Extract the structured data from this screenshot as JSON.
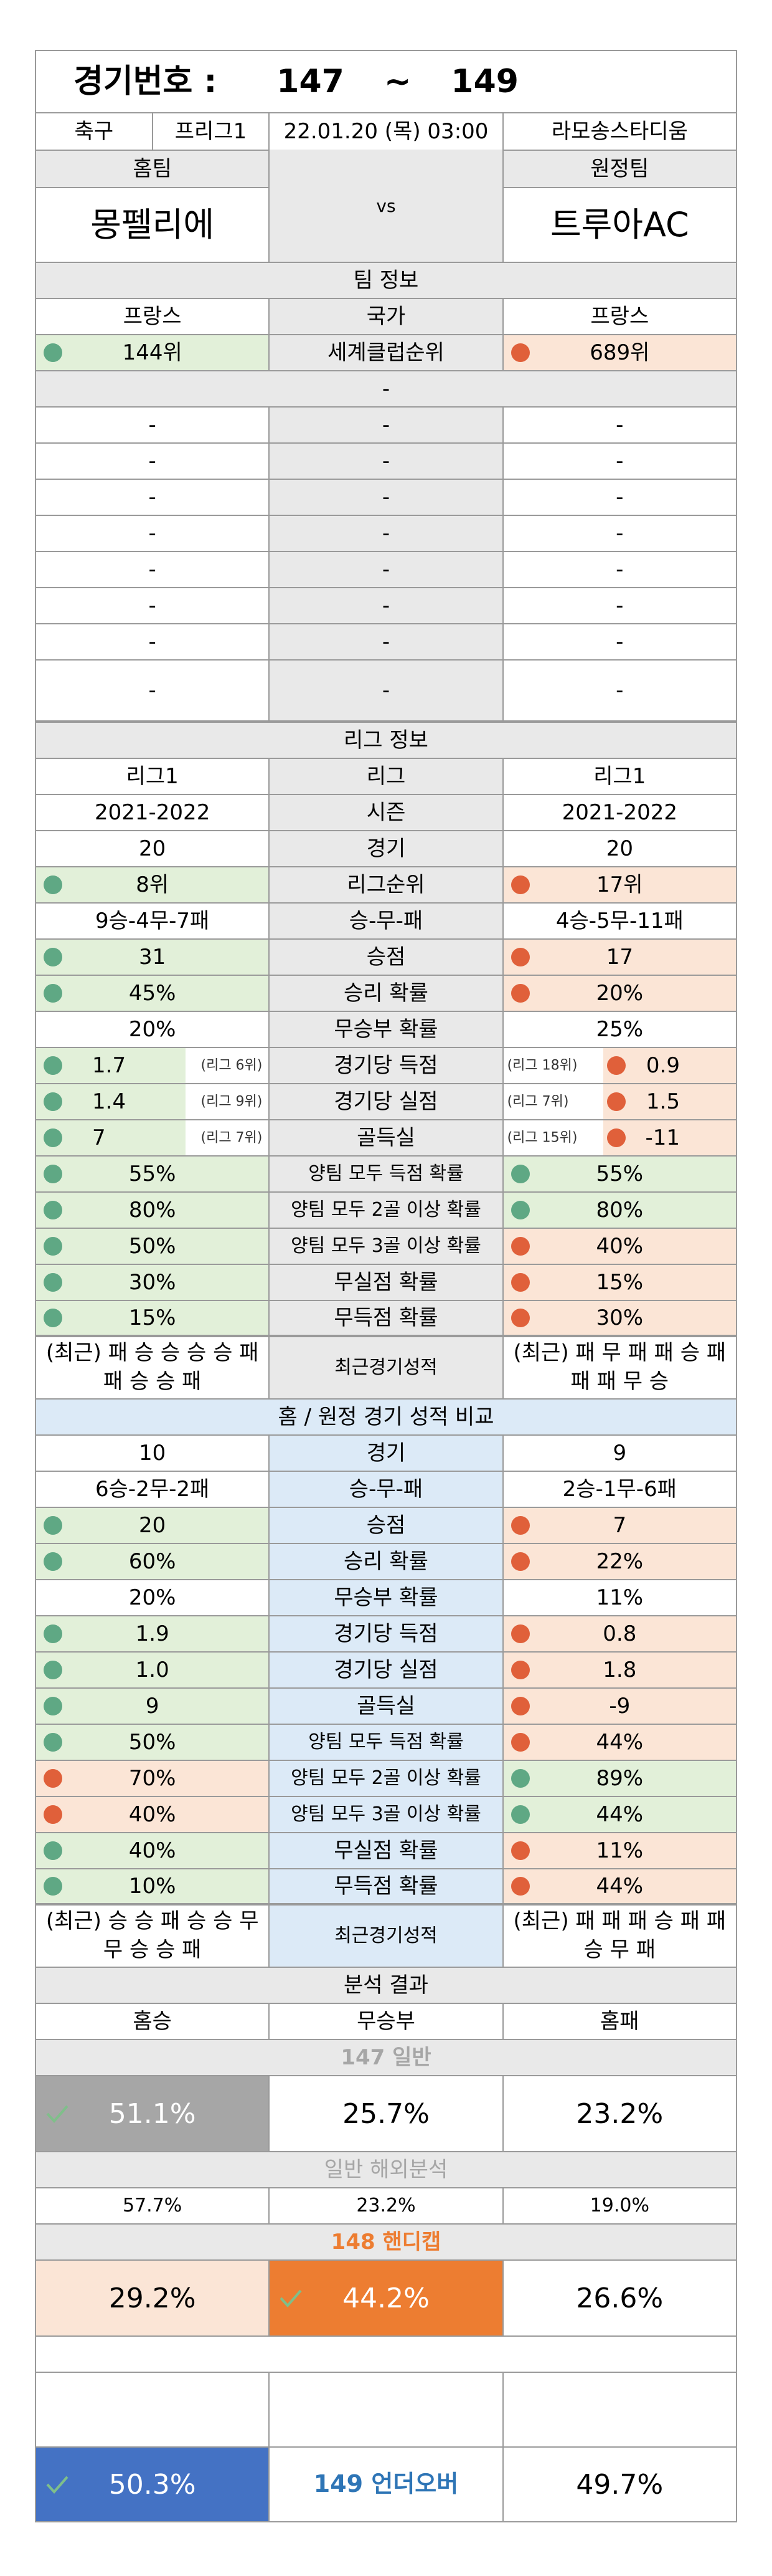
{
  "header": {
    "label": "경기번호 :",
    "from": "147",
    "tilde": "~",
    "to": "149"
  },
  "match": {
    "sport": "축구",
    "league": "프리그1",
    "datetime": "22.01.20 (목) 03:00",
    "stadium": "라모송스타디움"
  },
  "teams": {
    "home_label": "홈팀",
    "away_label": "원정팀",
    "home": "몽펠리에",
    "vs": "vs",
    "away": "트루아AC"
  },
  "team_info": {
    "title": "팀 정보",
    "country_home": "프랑스",
    "country_label": "국가",
    "country_away": "프랑스",
    "rank_home": "144위",
    "rank_label": "세계클럽순위",
    "rank_away": "689위",
    "dash_full": "-",
    "dash_rows": [
      "-",
      "-",
      "-",
      "-",
      "-",
      "-",
      "-",
      "-"
    ]
  },
  "league_info": {
    "title": "리그 정보",
    "rows": [
      {
        "home": "리그1",
        "label": "리그",
        "away": "리그1"
      },
      {
        "home": "2021-2022",
        "label": "시즌",
        "away": "2021-2022"
      },
      {
        "home": "20",
        "label": "경기",
        "away": "20"
      },
      {
        "home": "8위",
        "label": "리그순위",
        "away": "17위"
      },
      {
        "home": "9승-4무-7패",
        "label": "승-무-패",
        "away": "4승-5무-11패"
      },
      {
        "home": "31",
        "label": "승점",
        "away": "17"
      },
      {
        "home": "45%",
        "label": "승리 확률",
        "away": "20%"
      },
      {
        "home": "20%",
        "label": "무승부 확률",
        "away": "25%"
      },
      {
        "home": "1.7",
        "home_hint": "(리그 6위)",
        "label": "경기당 득점",
        "away": "0.9",
        "away_hint": "(리그 18위)"
      },
      {
        "home": "1.4",
        "home_hint": "(리그 9위)",
        "label": "경기당 실점",
        "away": "1.5",
        "away_hint": "(리그 7위)"
      },
      {
        "home": "7",
        "home_hint": "(리그 7위)",
        "label": "골득실",
        "away": "-11",
        "away_hint": "(리그 15위)"
      },
      {
        "home": "55%",
        "label": "양팀 모두 득점 확률",
        "away": "55%"
      },
      {
        "home": "80%",
        "label": "양팀 모두 2골 이상 확률",
        "away": "80%"
      },
      {
        "home": "50%",
        "label": "양팀 모두 3골 이상 확률",
        "away": "40%"
      },
      {
        "home": "30%",
        "label": "무실점 확률",
        "away": "15%"
      },
      {
        "home": "15%",
        "label": "무득점 확률",
        "away": "30%"
      }
    ],
    "recent_home": "(최근) 패 승 승 승 승 패 패 승 승 패",
    "recent_label": "최근경기성적",
    "recent_away": "(최근) 패 무 패 패 승 패 패 패 무 승"
  },
  "ha_info": {
    "title": "홈 / 원정 경기 성적 비교",
    "rows": [
      {
        "home": "10",
        "label": "경기",
        "away": "9"
      },
      {
        "home": "6승-2무-2패",
        "label": "승-무-패",
        "away": "2승-1무-6패"
      },
      {
        "home": "20",
        "label": "승점",
        "away": "7"
      },
      {
        "home": "60%",
        "label": "승리 확률",
        "away": "22%"
      },
      {
        "home": "20%",
        "label": "무승부 확률",
        "away": "11%"
      },
      {
        "home": "1.9",
        "label": "경기당 득점",
        "away": "0.8"
      },
      {
        "home": "1.0",
        "label": "경기당 실점",
        "away": "1.8"
      },
      {
        "home": "9",
        "label": "골득실",
        "away": "-9"
      },
      {
        "home": "50%",
        "label": "양팀 모두 득점 확률",
        "away": "44%"
      },
      {
        "home": "70%",
        "label": "양팀 모두 2골 이상 확률",
        "away": "89%"
      },
      {
        "home": "40%",
        "label": "양팀 모두 3골 이상 확률",
        "away": "44%"
      },
      {
        "home": "40%",
        "label": "무실점 확률",
        "away": "11%"
      },
      {
        "home": "10%",
        "label": "무득점 확률",
        "away": "44%"
      }
    ],
    "recent_home": "(최근) 승 승 패 승 승 무 무 승 승 패",
    "recent_label": "최근경기성적",
    "recent_away": "(최근) 패 패 패 승 패 패 승 무 패"
  },
  "analysis": {
    "title": "분석 결과",
    "home_win": "홈승",
    "draw": "무승부",
    "home_loss": "홈패",
    "general_title": "147 일반",
    "general": {
      "home": "51.1%",
      "draw": "25.7%",
      "away": "23.2%"
    },
    "overseas_title": "일반 해외분석",
    "overseas": {
      "home": "57.7%",
      "draw": "23.2%",
      "away": "19.0%"
    },
    "handicap_title": "148 핸디캡",
    "handicap": {
      "home": "29.2%",
      "draw": "44.2%",
      "away": "26.6%"
    },
    "underover": {
      "under": "50.3%",
      "label": "149 언더오버",
      "over": "49.7%"
    }
  },
  "colors": {
    "green_cell": "#e2f0d9",
    "pink_cell": "#fbe5d6",
    "blue_cell": "#dceaf7",
    "gray_cell": "#e9e9e9",
    "green_dot": "#5fa884",
    "orange_dot": "#e0603a",
    "pick_gray": "#a6a6a6",
    "pick_orange": "#ed7d31",
    "pick_blue": "#4472c4"
  },
  "icons": {
    "pick": "check-icon",
    "favor": "green-dot-icon",
    "disfavor": "orange-dot-icon"
  }
}
